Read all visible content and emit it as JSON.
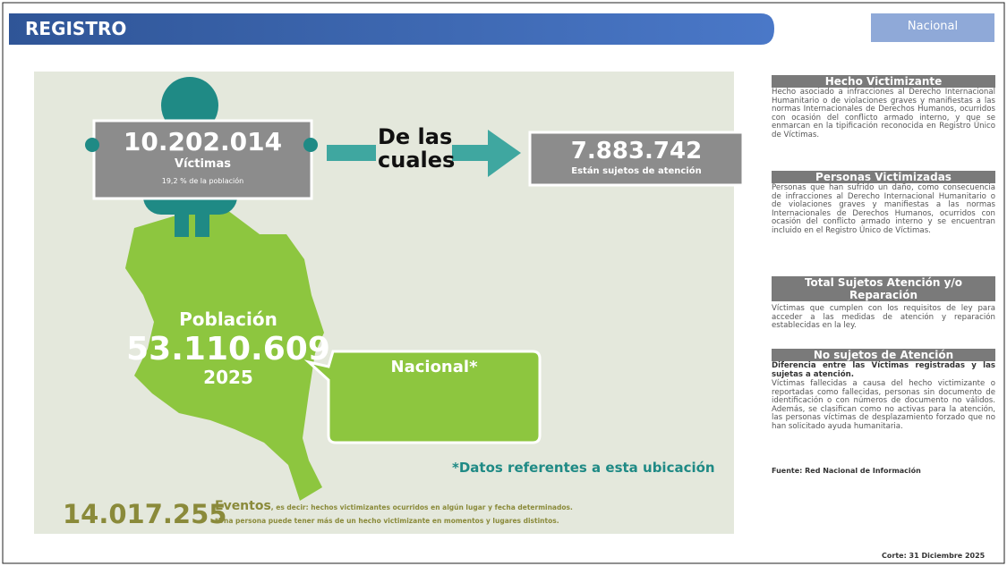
{
  "header": {
    "title": "REGISTRO",
    "button": "Nacional"
  },
  "victims": {
    "value": "10.202.014",
    "label": "Víctimas",
    "share": "19,2 % de la población"
  },
  "connector": "De las cuales",
  "subjects": {
    "value": "7.883.742",
    "label": "Están sujetos de atención"
  },
  "population": {
    "label": "Población",
    "value": "53.110.609",
    "year": "2025"
  },
  "location": {
    "name": "Nacional*",
    "note": "*Datos referentes a esta ubicación"
  },
  "events": {
    "value": "14.017.255",
    "label": "Eventos",
    "description": ", es decir: hechos victimizantes ocurridos en algún lugar y fecha determinados.",
    "footnote": "*Una persona puede tener más de un hecho victimizante en momentos y lugares distintos."
  },
  "definitions": [
    {
      "title": "Hecho Victimizante",
      "text": "Hecho asociado a infracciones al Derecho Internacional Humanitario o de violaciones graves y manifiestas a las normas Internacionales de Derechos Humanos, ocurridos con ocasión del conflicto armado interno, y que se enmarcan en la tipificación reconocida en Registro Único de Víctimas."
    },
    {
      "title": "Personas Victimizadas",
      "text": "Personas que han sufrido un daño, como consecuencia de infracciones al Derecho Internacional Humanitario o de violaciones graves y manifiestas a las normas Internacionales de Derechos Humanos, ocurridos con ocasión del conflicto armado interno y se encuentran incluido en el Registro Único de Víctimas."
    },
    {
      "title": "Total Sujetos Atención y/o Reparación",
      "text": "Víctimas que cumplen con los requisitos de ley para acceder a las medidas de atención y reparación establecidas en la ley."
    },
    {
      "title": "No sujetos de Atención",
      "lead": "Diferencia entre las Víctimas registradas y las sujetas a atención.",
      "text": "Víctimas fallecidas a causa del hecho victimizante o reportadas como fallecidas, personas sin documento de identificación o con números de documento no válidos. Además, se clasifican como no activas para la atención, las personas víctimas de desplazamiento forzado que no han solicitado ayuda humanitaria."
    }
  ],
  "source": "Fuente: Red Nacional de Información",
  "cutoff": "Corte: 31 Diciembre 2025"
}
